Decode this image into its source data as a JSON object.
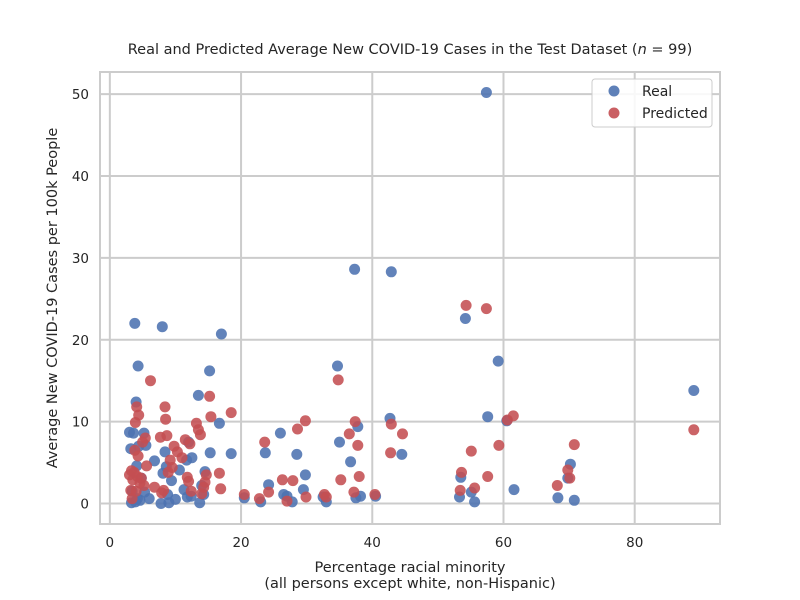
{
  "chart_data": {
    "type": "scatter",
    "title": "Real and Predicted Average New COVID-19 Cases in the Test Dataset (n = 99)",
    "title_parts": [
      "Real and Predicted Average New COVID-19 Cases in the Test Dataset (",
      "n",
      " = 99)"
    ],
    "xlabel": [
      "Percentage racial minority",
      "(all persons except white, non-Hispanic)"
    ],
    "ylabel": "Average New COVID-19 Cases per 100k People",
    "xlim": [
      -1.5,
      93
    ],
    "ylim": [
      -2.5,
      52.7
    ],
    "xticks": [
      0,
      20,
      40,
      60,
      80
    ],
    "yticks": [
      0,
      10,
      20,
      30,
      40,
      50
    ],
    "grid": true,
    "legend_position": "top-right",
    "colors": {
      "real": "#4c72b0",
      "predicted": "#c44e52",
      "grid": "#cccccc",
      "frame": "#cccccc"
    },
    "series": [
      {
        "name": "Real",
        "color": "#4c72b0",
        "points": [
          [
            3,
            8.7
          ],
          [
            3.2,
            6.7
          ],
          [
            3.3,
            0.1
          ],
          [
            3.4,
            1.5
          ],
          [
            3.6,
            8.6
          ],
          [
            3.8,
            22
          ],
          [
            3.9,
            0.2
          ],
          [
            4,
            12.4
          ],
          [
            4.1,
            4.6
          ],
          [
            4.2,
            0.6
          ],
          [
            4.3,
            16.8
          ],
          [
            4.4,
            7
          ],
          [
            4.6,
            0.4
          ],
          [
            4.8,
            3.1
          ],
          [
            5.2,
            8.6
          ],
          [
            5.3,
            1.4
          ],
          [
            5.5,
            7.1
          ],
          [
            6,
            0.6
          ],
          [
            6.8,
            5.2
          ],
          [
            7.8,
            0
          ],
          [
            8,
            21.6
          ],
          [
            8.1,
            3.7
          ],
          [
            8.4,
            6.3
          ],
          [
            8.6,
            4.5
          ],
          [
            8.8,
            1.1
          ],
          [
            9,
            0.1
          ],
          [
            9.4,
            2.8
          ],
          [
            10,
            0.5
          ],
          [
            10.6,
            4.1
          ],
          [
            11.3,
            1.7
          ],
          [
            11.7,
            5.3
          ],
          [
            11.8,
            0.8
          ],
          [
            12,
            7.5
          ],
          [
            12.4,
            0.9
          ],
          [
            12.5,
            5.6
          ],
          [
            13.5,
            13.2
          ],
          [
            13.7,
            0.1
          ],
          [
            14,
            2.2
          ],
          [
            14.3,
            1.1
          ],
          [
            14.5,
            3.9
          ],
          [
            15.2,
            16.2
          ],
          [
            15.3,
            6.2
          ],
          [
            16.7,
            9.8
          ],
          [
            17,
            20.7
          ],
          [
            18.5,
            6.1
          ],
          [
            20.5,
            0.7
          ],
          [
            23,
            0.2
          ],
          [
            23.7,
            6.2
          ],
          [
            24.2,
            2.3
          ],
          [
            26,
            8.6
          ],
          [
            26.5,
            1.1
          ],
          [
            27,
            0.9
          ],
          [
            27.8,
            0.2
          ],
          [
            28.5,
            6
          ],
          [
            29.5,
            1.7
          ],
          [
            29.8,
            3.5
          ],
          [
            32.5,
            0.8
          ],
          [
            33,
            0.2
          ],
          [
            34.7,
            16.8
          ],
          [
            35,
            7.5
          ],
          [
            36.7,
            5.1
          ],
          [
            37.3,
            28.6
          ],
          [
            37.5,
            0.7
          ],
          [
            37.8,
            9.4
          ],
          [
            38.2,
            0.9
          ],
          [
            40.5,
            0.9
          ],
          [
            42.7,
            10.4
          ],
          [
            42.9,
            28.3
          ],
          [
            44.5,
            6
          ],
          [
            53.3,
            0.8
          ],
          [
            53.5,
            3.2
          ],
          [
            54.2,
            22.6
          ],
          [
            55.1,
            1.4
          ],
          [
            55.6,
            0.2
          ],
          [
            57.4,
            50.2
          ],
          [
            57.6,
            10.6
          ],
          [
            59.2,
            17.4
          ],
          [
            60.5,
            10.1
          ],
          [
            61.6,
            1.7
          ],
          [
            68.3,
            0.7
          ],
          [
            69.8,
            3.1
          ],
          [
            70.2,
            4.8
          ],
          [
            70.8,
            0.4
          ],
          [
            89,
            13.8
          ]
        ]
      },
      {
        "name": "Predicted",
        "color": "#c44e52",
        "points": [
          [
            3,
            3.5
          ],
          [
            3.2,
            1.6
          ],
          [
            3.3,
            4
          ],
          [
            3.4,
            0.6
          ],
          [
            3.5,
            2.9
          ],
          [
            3.7,
            3.8
          ],
          [
            3.8,
            6.5
          ],
          [
            3.9,
            9.9
          ],
          [
            4,
            1.5
          ],
          [
            4.1,
            11.8
          ],
          [
            4.2,
            3.3
          ],
          [
            4.3,
            5.8
          ],
          [
            4.4,
            10.8
          ],
          [
            4.6,
            2.5
          ],
          [
            4.8,
            3.1
          ],
          [
            5,
            7.5
          ],
          [
            5.2,
            2.2
          ],
          [
            5.4,
            8
          ],
          [
            5.6,
            4.6
          ],
          [
            6.2,
            15
          ],
          [
            6.8,
            2
          ],
          [
            7.7,
            8.1
          ],
          [
            7.9,
            1.3
          ],
          [
            8.2,
            1.6
          ],
          [
            8.4,
            11.8
          ],
          [
            8.5,
            10.3
          ],
          [
            8.7,
            8.3
          ],
          [
            8.9,
            3.8
          ],
          [
            9.2,
            5.3
          ],
          [
            9.5,
            4.4
          ],
          [
            9.8,
            7
          ],
          [
            10.3,
            6.3
          ],
          [
            11,
            5.6
          ],
          [
            11.5,
            7.8
          ],
          [
            11.8,
            3.2
          ],
          [
            12,
            2.7
          ],
          [
            12.2,
            7.3
          ],
          [
            12.4,
            1.5
          ],
          [
            13.2,
            9.8
          ],
          [
            13.5,
            9
          ],
          [
            13.8,
            8.4
          ],
          [
            14,
            1.2
          ],
          [
            14.3,
            2
          ],
          [
            14.5,
            2.6
          ],
          [
            14.7,
            3.5
          ],
          [
            15.2,
            13.1
          ],
          [
            15.4,
            10.6
          ],
          [
            16.7,
            3.7
          ],
          [
            16.9,
            1.8
          ],
          [
            18.5,
            11.1
          ],
          [
            20.5,
            1.1
          ],
          [
            22.8,
            0.6
          ],
          [
            23.6,
            7.5
          ],
          [
            24.2,
            1.4
          ],
          [
            26.3,
            2.9
          ],
          [
            27,
            0.3
          ],
          [
            27.9,
            2.8
          ],
          [
            28.6,
            9.1
          ],
          [
            29.8,
            10.1
          ],
          [
            29.9,
            0.8
          ],
          [
            32.7,
            1.1
          ],
          [
            33,
            0.8
          ],
          [
            34.8,
            15.1
          ],
          [
            35.2,
            2.9
          ],
          [
            36.5,
            8.5
          ],
          [
            37.2,
            1.4
          ],
          [
            37.4,
            10
          ],
          [
            37.8,
            7.1
          ],
          [
            38,
            3.3
          ],
          [
            40.4,
            1.1
          ],
          [
            42.8,
            6.2
          ],
          [
            42.9,
            9.7
          ],
          [
            44.6,
            8.5
          ],
          [
            53.4,
            1.6
          ],
          [
            53.6,
            3.8
          ],
          [
            54.3,
            24.2
          ],
          [
            55.1,
            6.4
          ],
          [
            55.6,
            1.9
          ],
          [
            57.4,
            23.8
          ],
          [
            57.6,
            3.3
          ],
          [
            59.3,
            7.1
          ],
          [
            60.6,
            10.2
          ],
          [
            61.5,
            10.7
          ],
          [
            68.2,
            2.2
          ],
          [
            69.8,
            4.1
          ],
          [
            70.1,
            3.1
          ],
          [
            70.8,
            7.2
          ],
          [
            89,
            9
          ]
        ]
      }
    ]
  }
}
